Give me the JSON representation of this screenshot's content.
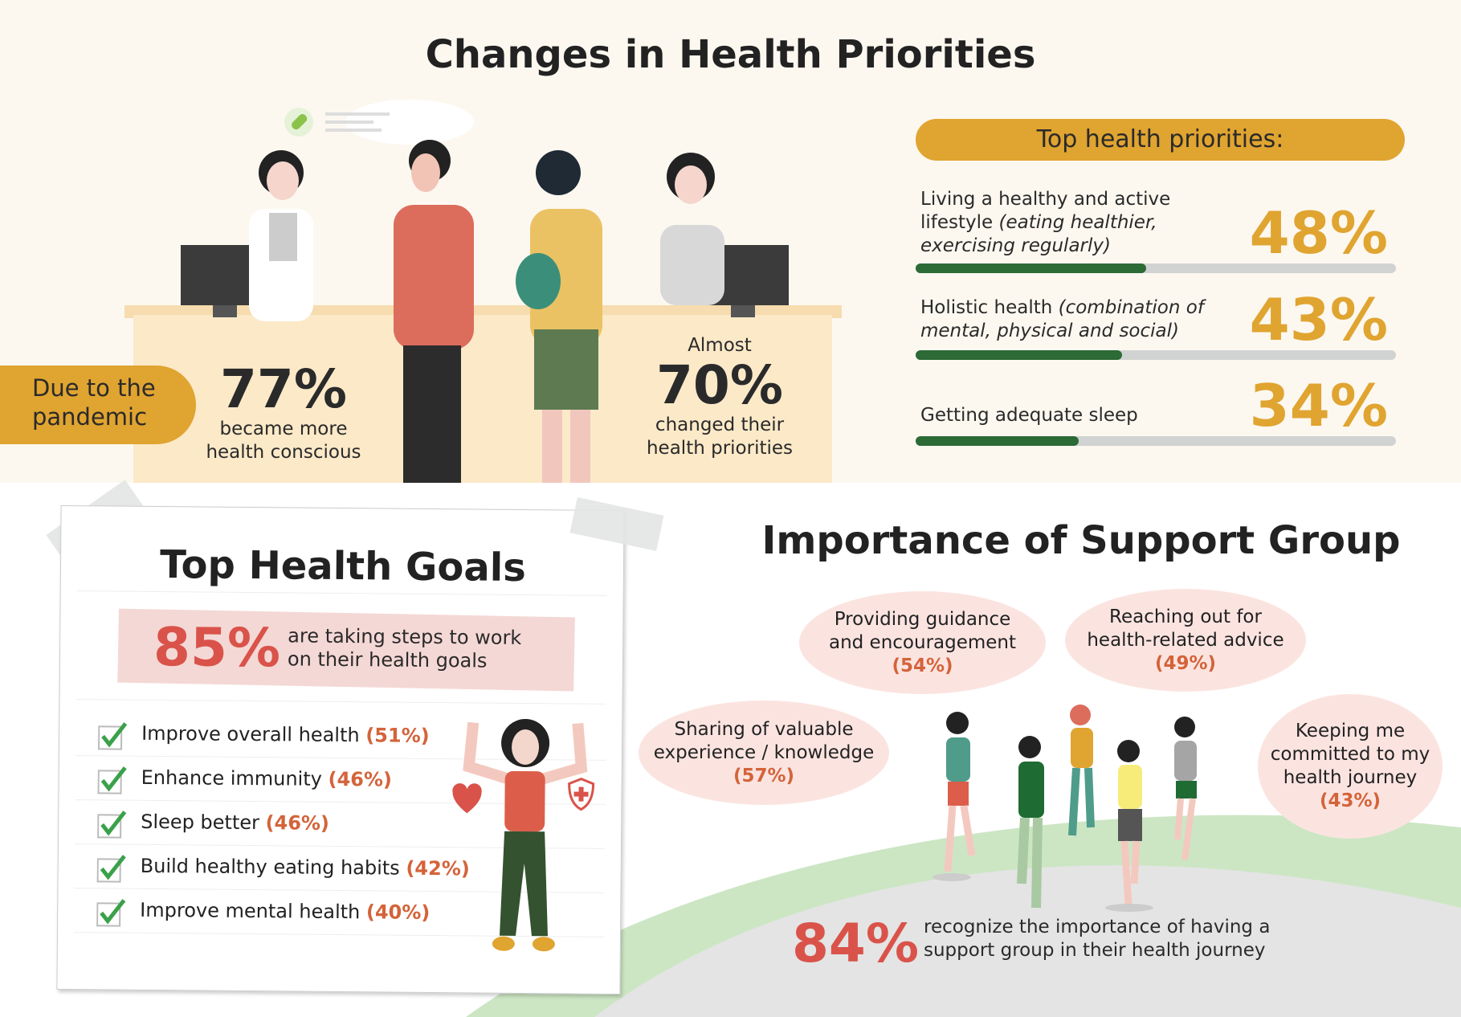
{
  "top": {
    "title": "Changes in Health Priorities",
    "pandemic_label": "Due to the pandemic",
    "stat1": {
      "value": "77%",
      "text_line1": "became more",
      "text_line2": "health conscious"
    },
    "stat2": {
      "prefix": "Almost",
      "value": "70%",
      "text_line1": "changed their",
      "text_line2": "health priorities"
    }
  },
  "priorities": {
    "heading": "Top health priorities:",
    "items": [
      {
        "label": "Living a healthy and active lifestyle",
        "detail": "(eating healthier, exercising regularly)",
        "value": "48%",
        "fraction": 0.48
      },
      {
        "label": "Holistic health",
        "detail": "(combination of mental, physical and social)",
        "value": "43%",
        "fraction": 0.43
      },
      {
        "label": "Getting adequate sleep",
        "detail": "",
        "value": "34%",
        "fraction": 0.34
      }
    ]
  },
  "goals": {
    "title": "Top Health Goals",
    "headline_value": "85%",
    "headline_line1": "are taking steps to work",
    "headline_line2": "on their health goals",
    "items": [
      {
        "label": "Improve overall health",
        "value": "(51%)"
      },
      {
        "label": "Enhance immunity",
        "value": "(46%)"
      },
      {
        "label": "Sleep better",
        "value": "(46%)"
      },
      {
        "label": "Build healthy eating habits",
        "value": "(42%)"
      },
      {
        "label": "Improve mental health",
        "value": "(40%)"
      }
    ]
  },
  "support": {
    "title": "Importance of Support Group",
    "bubbles": [
      {
        "line1": "Providing guidance",
        "line2": "and encouragement",
        "value": "(54%)"
      },
      {
        "line1": "Reaching out for",
        "line2": "health-related advice",
        "value": "(49%)"
      },
      {
        "line1": "Sharing of valuable",
        "line2": "experience / knowledge",
        "value": "(57%)"
      },
      {
        "line1": "Keeping me",
        "line2": "committed to my",
        "line3": "health journey",
        "value": "(43%)"
      }
    ],
    "headline_value": "84%",
    "headline_line1": "recognize the importance of having a",
    "headline_line2": "support group in their health journey"
  },
  "colors": {
    "accent_yellow": "#e0a430",
    "accent_red": "#d9534a",
    "bar_green": "#2c6a36",
    "bar_track": "#d1d3d2",
    "bubble_pink": "#fbe4e0"
  }
}
